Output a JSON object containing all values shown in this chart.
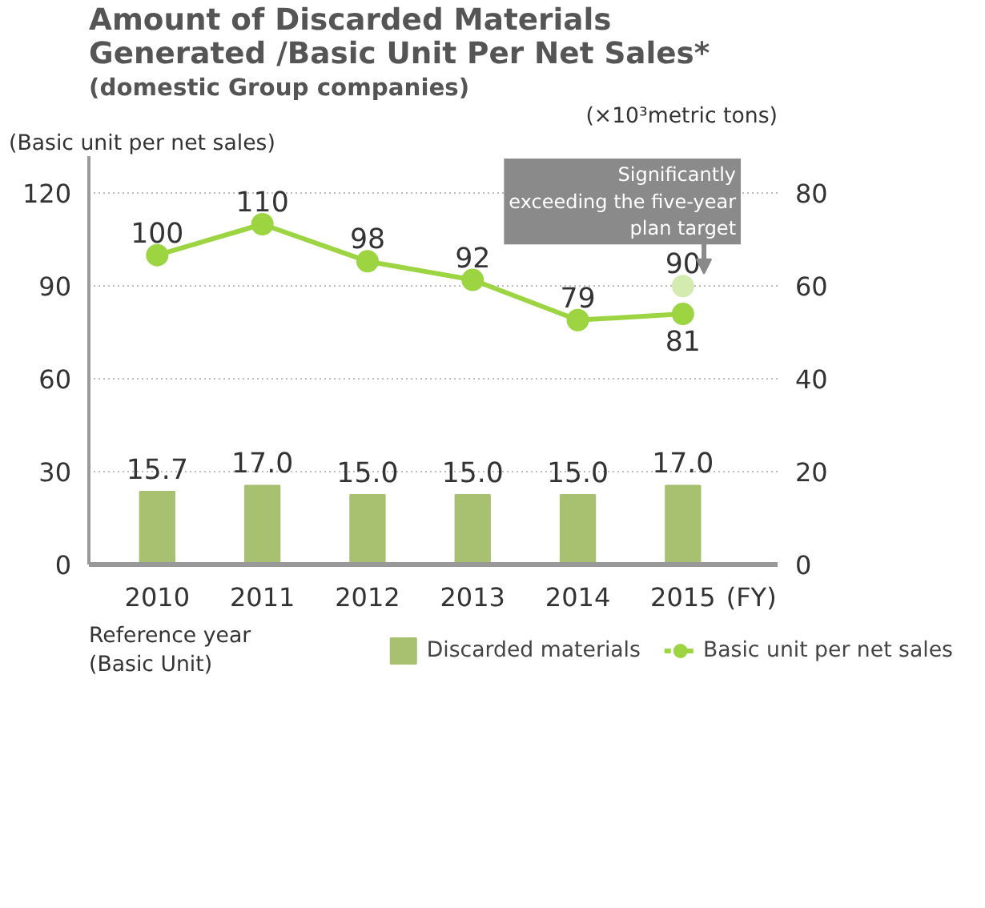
{
  "chart_data": {
    "type": "bar",
    "title": "Amount of Discarded Materials\nGenerated /Basic Unit Per Net Sales*",
    "subtitle": "(domestic Group companies)",
    "xlabel": "(FY)",
    "ylabel": "(Basic unit per net sales)",
    "y2label": "(×10³metric tons)",
    "categories": [
      "2010",
      "2011",
      "2012",
      "2013",
      "2014",
      "2015"
    ],
    "series": [
      {
        "name": "Discarded materials",
        "axis": "y2",
        "color": "#a7c170",
        "values": [
          15.7,
          17.0,
          15.0,
          15.0,
          15.0,
          17.0
        ],
        "value_labels": [
          "15.7",
          "17.0",
          "15.0",
          "15.0",
          "15.0",
          "17.0"
        ]
      },
      {
        "name": "Basic unit per net sales",
        "type": "line",
        "color": "#9cd442",
        "marker": "circle",
        "values": [
          100,
          110,
          98,
          92,
          79,
          81
        ],
        "value_labels": [
          "100",
          "110",
          "98",
          "92",
          "79",
          "81"
        ]
      },
      {
        "type": "scatter",
        "color": "#d4ebb0",
        "marker": "circle",
        "values": [
          null,
          null,
          null,
          null,
          null,
          90
        ],
        "value_labels": [
          null,
          null,
          null,
          null,
          null,
          "90"
        ]
      }
    ],
    "ylim": [
      0,
      132
    ],
    "yticks": [
      0,
      30,
      60,
      90,
      120
    ],
    "y2lim": [
      0,
      88
    ],
    "y2ticks": [
      0,
      20,
      40,
      60,
      80
    ],
    "grid": "y",
    "legend": "bottom",
    "annotations": [
      {
        "text": "Significantly\nexceeding the five-year\nplan target",
        "x": "2015",
        "y": 90
      },
      "Reference year\n(Basic Unit)"
    ]
  }
}
